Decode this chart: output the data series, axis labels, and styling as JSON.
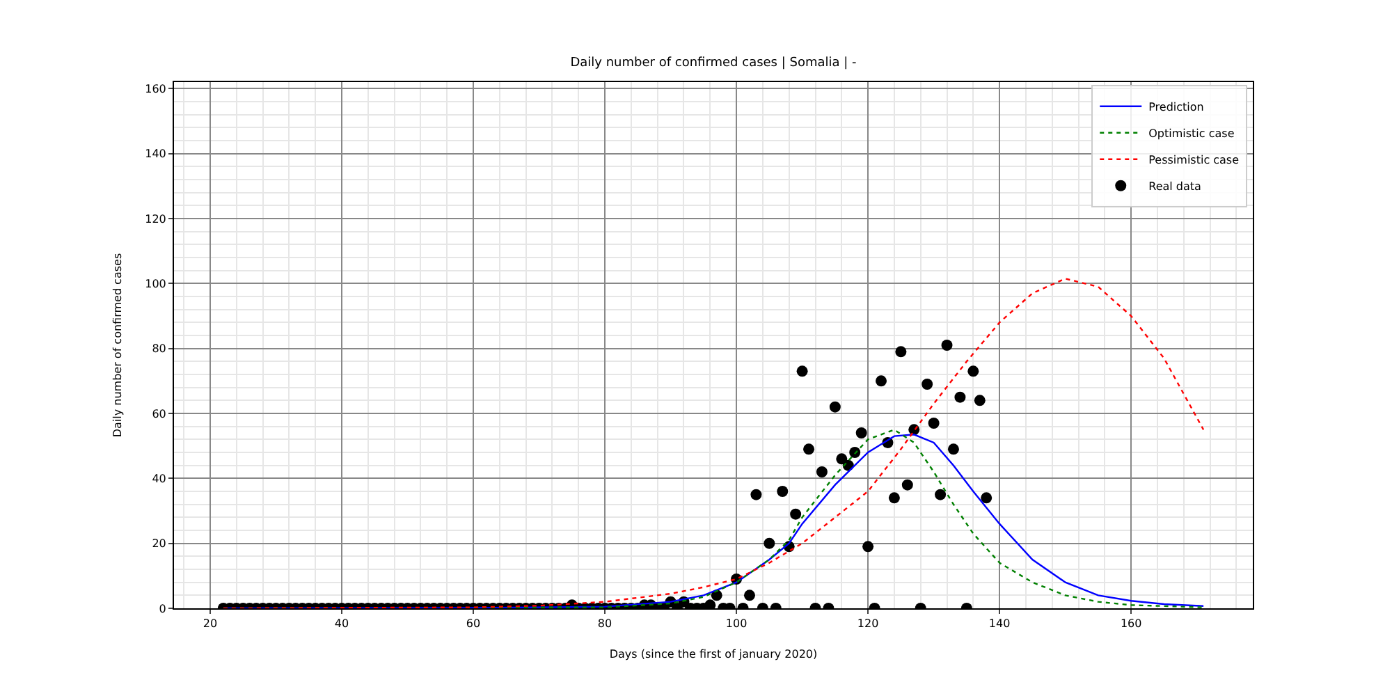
{
  "chart_data": {
    "type": "line",
    "title": "Daily number of confirmed cases | Somalia | -",
    "xlabel": "Days (since the first of january 2020)",
    "ylabel": "Daily number of confirmed cases",
    "xlim": [
      14.5,
      178.5
    ],
    "xticks": [
      20,
      40,
      60,
      80,
      100,
      120,
      140,
      160
    ],
    "ylim": [
      0,
      162
    ],
    "yticks": [
      0,
      20,
      40,
      60,
      80,
      100,
      120,
      140,
      160
    ],
    "grid": true,
    "legend": "top right",
    "series": [
      {
        "name": "Prediction",
        "line_style": "solid",
        "color": "#0000ff",
        "x": [
          22,
          60,
          80,
          90,
          95,
          100,
          105,
          108,
          110,
          115,
          120,
          124,
          127,
          130,
          133,
          136,
          140,
          145,
          150,
          155,
          160,
          165,
          171
        ],
        "values": [
          0,
          0.1,
          0.5,
          2,
          4,
          8,
          15,
          20,
          26,
          38,
          48,
          53,
          53.5,
          51,
          44,
          36,
          26,
          15,
          8,
          4,
          2.3,
          1.3,
          0.7
        ]
      },
      {
        "name": "Optimistic case",
        "line_style": "dotted",
        "color": "#008000",
        "x": [
          22,
          80,
          90,
          95,
          100,
          105,
          108,
          110,
          115,
          120,
          124,
          127,
          130,
          133,
          136,
          140,
          145,
          150,
          155,
          160,
          171
        ],
        "values": [
          0,
          0.3,
          1.5,
          3.5,
          8,
          15,
          21,
          28,
          41,
          52,
          55,
          51,
          42,
          32,
          23,
          14,
          8,
          4,
          2,
          1,
          0.3
        ]
      },
      {
        "name": "Pessimistic case",
        "line_style": "dotted",
        "color": "#ff0000",
        "x": [
          22,
          60,
          70,
          80,
          90,
          95,
          100,
          105,
          110,
          115,
          120,
          125,
          130,
          135,
          140,
          145,
          150,
          155,
          160,
          165,
          171
        ],
        "values": [
          0,
          0.3,
          0.8,
          2,
          4.5,
          6.5,
          9,
          14,
          20,
          28,
          36,
          49,
          63,
          76,
          88,
          97,
          101.5,
          99,
          90,
          77,
          55
        ]
      },
      {
        "name": "Real data",
        "type": "scatter",
        "marker": "circle",
        "color": "#000000",
        "x": [
          22,
          23,
          24,
          25,
          26,
          27,
          28,
          29,
          30,
          31,
          32,
          33,
          34,
          35,
          36,
          37,
          38,
          39,
          40,
          41,
          42,
          43,
          44,
          45,
          46,
          47,
          48,
          49,
          50,
          51,
          52,
          53,
          54,
          55,
          56,
          57,
          58,
          59,
          60,
          61,
          62,
          63,
          64,
          65,
          66,
          67,
          68,
          69,
          70,
          71,
          72,
          73,
          74,
          75,
          76,
          77,
          78,
          79,
          80,
          81,
          82,
          83,
          84,
          85,
          86,
          87,
          88,
          89,
          90,
          91,
          92,
          93,
          94,
          95,
          96,
          97,
          98,
          99,
          100,
          101,
          102,
          103,
          104,
          105,
          106,
          107,
          108,
          109,
          110,
          111,
          112,
          113,
          114,
          115,
          116,
          117,
          118,
          119,
          120,
          121,
          122,
          123,
          124,
          125,
          126,
          127,
          128,
          129,
          130,
          131,
          132,
          133,
          134,
          135,
          136,
          137,
          138
        ],
        "values": [
          0,
          0,
          0,
          0,
          0,
          0,
          0,
          0,
          0,
          0,
          0,
          0,
          0,
          0,
          0,
          0,
          0,
          0,
          0,
          0,
          0,
          0,
          0,
          0,
          0,
          0,
          0,
          0,
          0,
          0,
          0,
          0,
          0,
          0,
          0,
          0,
          0,
          0,
          0,
          0,
          0,
          0,
          0,
          0,
          0,
          0,
          0,
          0,
          0,
          0,
          0,
          0,
          0,
          1,
          0,
          0,
          0,
          0,
          0,
          0,
          0,
          0,
          0,
          0,
          1,
          1,
          0,
          0,
          2,
          0,
          2,
          0,
          0,
          0,
          1,
          4,
          0,
          0,
          9,
          0,
          4,
          35,
          0,
          20,
          0,
          36,
          19,
          29,
          73,
          49,
          0,
          42,
          0,
          62,
          46,
          44,
          48,
          54,
          19,
          0,
          70,
          51,
          34,
          79,
          38,
          55,
          0,
          69,
          57,
          35,
          81,
          49,
          65,
          0,
          73,
          64,
          34
        ]
      }
    ]
  }
}
